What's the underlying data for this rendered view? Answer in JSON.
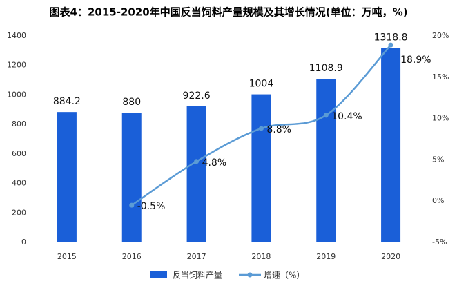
{
  "chart_data": {
    "type": "bar",
    "title": "图表4：2015-2020年中国反当饲料产量规模及其增长情况(单位：万吨，%)",
    "categories": [
      "2015",
      "2016",
      "2017",
      "2018",
      "2019",
      "2020"
    ],
    "series": [
      {
        "name": "反当饲料产量",
        "type": "bar",
        "color": "#1a5fd8",
        "values": [
          884.2,
          880,
          922.6,
          1004,
          1108.9,
          1318.8
        ]
      },
      {
        "name": "增速（%）",
        "type": "line",
        "axis": "y2",
        "color": "#5b9bd5",
        "values": [
          null,
          -0.5,
          4.8,
          8.8,
          10.4,
          18.9
        ],
        "value_labels": [
          null,
          "-0.5%",
          "4.8%",
          "8.8%",
          "10.4%",
          "18.9%"
        ]
      }
    ],
    "ylim": [
      0,
      1400
    ],
    "yticks": [
      0,
      200,
      400,
      600,
      800,
      1000,
      1200,
      1400
    ],
    "y2lim": [
      -5,
      20
    ],
    "y2ticks": [
      {
        "value": -5,
        "label": "-5%"
      },
      {
        "value": 0,
        "label": "0%"
      },
      {
        "value": 5,
        "label": "5%"
      },
      {
        "value": 10,
        "label": "10%"
      },
      {
        "value": 15,
        "label": "15%"
      },
      {
        "value": 20,
        "label": "20%"
      }
    ],
    "legend": "bottom"
  }
}
